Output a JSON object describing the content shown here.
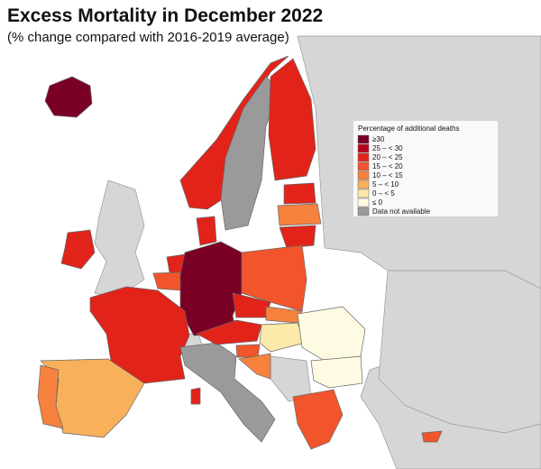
{
  "header": {
    "title": "Excess Mortality in December 2022",
    "subtitle": "(% change compared with 2016-2019 average)"
  },
  "legend": {
    "title": "Percentage of additional deaths",
    "items": [
      {
        "label": "≥30",
        "color": "#7a0026"
      },
      {
        "label": "25 – < 30",
        "color": "#b8001f"
      },
      {
        "label": "20 – < 25",
        "color": "#e2231a"
      },
      {
        "label": "15 – < 20",
        "color": "#f2552b"
      },
      {
        "label": "10 – < 15",
        "color": "#f7823e"
      },
      {
        "label": "5 – < 10",
        "color": "#f9b05a"
      },
      {
        "label": "0 – < 5",
        "color": "#fde9a9"
      },
      {
        "label": "≤ 0",
        "color": "#fffbe3"
      },
      {
        "label": "Data not available",
        "color": "#9a9a9a"
      }
    ]
  }
}
